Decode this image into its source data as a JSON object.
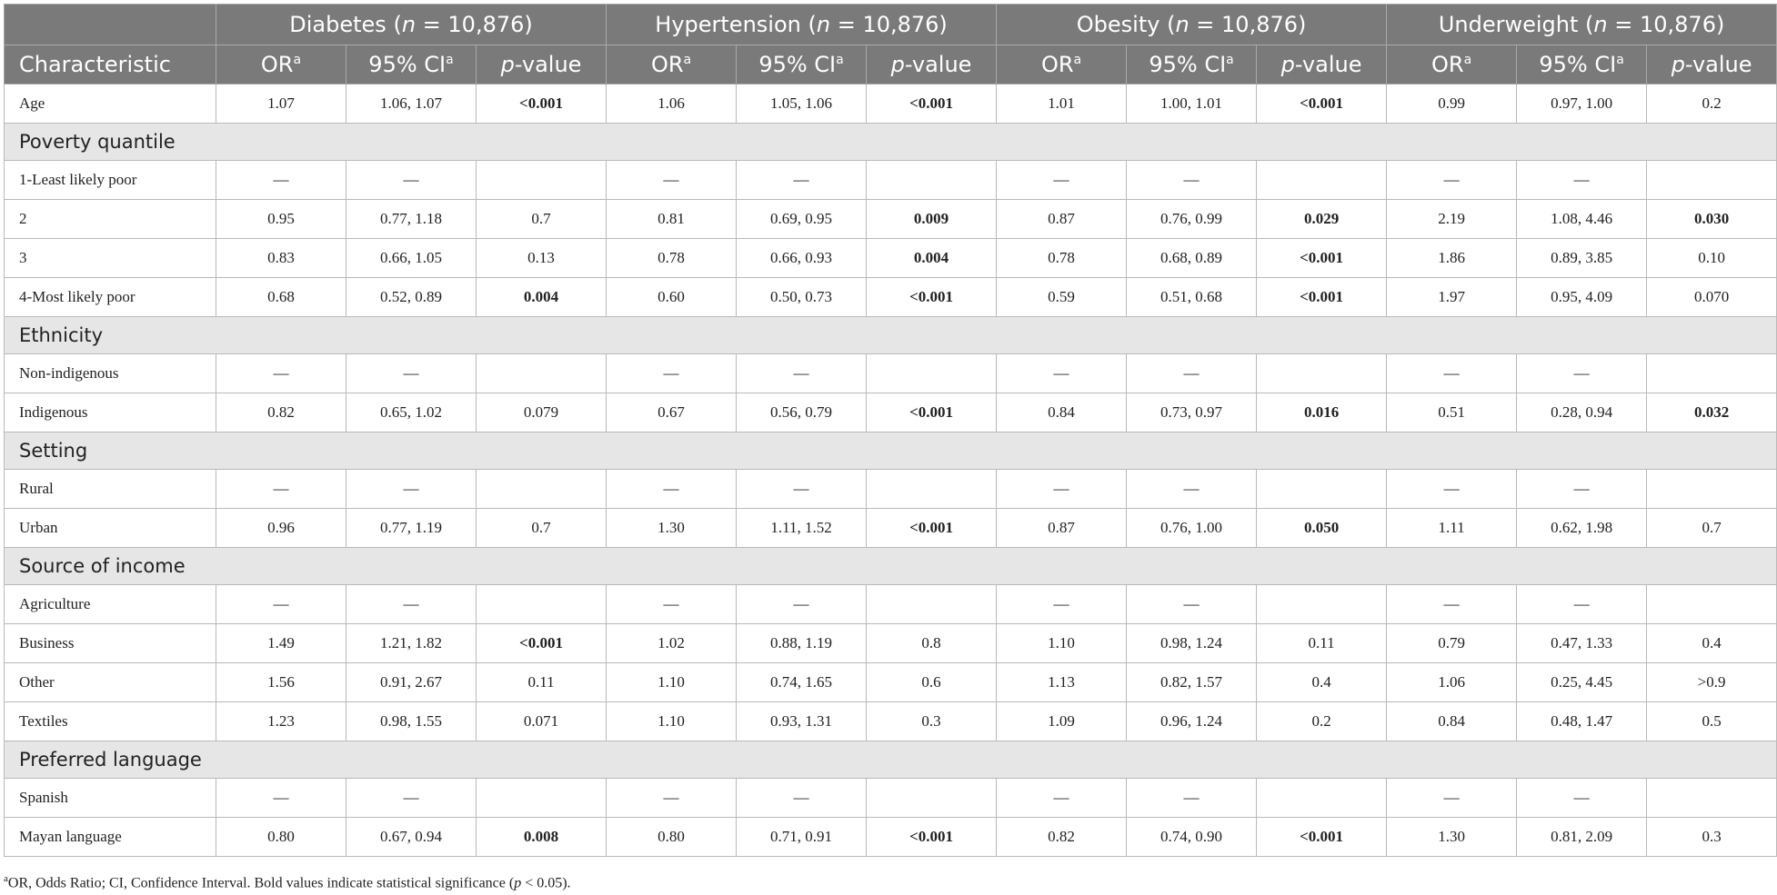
{
  "groups": [
    {
      "name": "Diabetes",
      "n_label": "n",
      "n_value": " = 10,876"
    },
    {
      "name": "Hypertension",
      "n_label": "n",
      "n_value": " = 10,876"
    },
    {
      "name": "Obesity",
      "n_label": "n",
      "n_value": " = 10,876"
    },
    {
      "name": "Underweight",
      "n_label": "n",
      "n_value": " = 10,876"
    }
  ],
  "subheaders": {
    "characteristic": "Characteristic",
    "or": "OR",
    "ci": "95% CI",
    "p_italic": "p",
    "p_rest": "-value",
    "sup": "a"
  },
  "rows": [
    {
      "type": "data",
      "label": "Age",
      "cells": [
        "1.07",
        "1.06, 1.07",
        "<0.001",
        "1.06",
        "1.05, 1.06",
        "<0.001",
        "1.01",
        "1.00, 1.01",
        "<0.001",
        "0.99",
        "0.97, 1.00",
        "0.2"
      ],
      "bold": [
        2,
        5,
        8
      ]
    },
    {
      "type": "section",
      "label": "Poverty quantile"
    },
    {
      "type": "data",
      "label": "1-Least likely poor",
      "cells": [
        "—",
        "—",
        "",
        "—",
        "—",
        "",
        "—",
        "—",
        "",
        "—",
        "—",
        ""
      ],
      "bold": []
    },
    {
      "type": "data",
      "label": "2",
      "cells": [
        "0.95",
        "0.77, 1.18",
        "0.7",
        "0.81",
        "0.69, 0.95",
        "0.009",
        "0.87",
        "0.76, 0.99",
        "0.029",
        "2.19",
        "1.08, 4.46",
        "0.030"
      ],
      "bold": [
        5,
        8,
        11
      ]
    },
    {
      "type": "data",
      "label": "3",
      "cells": [
        "0.83",
        "0.66, 1.05",
        "0.13",
        "0.78",
        "0.66, 0.93",
        "0.004",
        "0.78",
        "0.68, 0.89",
        "<0.001",
        "1.86",
        "0.89, 3.85",
        "0.10"
      ],
      "bold": [
        5,
        8
      ]
    },
    {
      "type": "data",
      "label": "4-Most likely poor",
      "cells": [
        "0.68",
        "0.52, 0.89",
        "0.004",
        "0.60",
        "0.50, 0.73",
        "<0.001",
        "0.59",
        "0.51, 0.68",
        "<0.001",
        "1.97",
        "0.95, 4.09",
        "0.070"
      ],
      "bold": [
        2,
        5,
        8
      ]
    },
    {
      "type": "section",
      "label": "Ethnicity"
    },
    {
      "type": "data",
      "label": "Non-indigenous",
      "cells": [
        "—",
        "—",
        "",
        "—",
        "—",
        "",
        "—",
        "—",
        "",
        "—",
        "—",
        ""
      ],
      "bold": []
    },
    {
      "type": "data",
      "label": "Indigenous",
      "cells": [
        "0.82",
        "0.65, 1.02",
        "0.079",
        "0.67",
        "0.56, 0.79",
        "<0.001",
        "0.84",
        "0.73, 0.97",
        "0.016",
        "0.51",
        "0.28, 0.94",
        "0.032"
      ],
      "bold": [
        5,
        8,
        11
      ]
    },
    {
      "type": "section",
      "label": "Setting"
    },
    {
      "type": "data",
      "label": "Rural",
      "cells": [
        "—",
        "—",
        "",
        "—",
        "—",
        "",
        "—",
        "—",
        "",
        "—",
        "—",
        ""
      ],
      "bold": []
    },
    {
      "type": "data",
      "label": "Urban",
      "cells": [
        "0.96",
        "0.77, 1.19",
        "0.7",
        "1.30",
        "1.11, 1.52",
        "<0.001",
        "0.87",
        "0.76, 1.00",
        "0.050",
        "1.11",
        "0.62, 1.98",
        "0.7"
      ],
      "bold": [
        5,
        8
      ]
    },
    {
      "type": "section",
      "label": "Source of income"
    },
    {
      "type": "data",
      "label": "Agriculture",
      "cells": [
        "—",
        "—",
        "",
        "—",
        "—",
        "",
        "—",
        "—",
        "",
        "—",
        "—",
        ""
      ],
      "bold": []
    },
    {
      "type": "data",
      "label": "Business",
      "cells": [
        "1.49",
        "1.21, 1.82",
        "<0.001",
        "1.02",
        "0.88, 1.19",
        "0.8",
        "1.10",
        "0.98, 1.24",
        "0.11",
        "0.79",
        "0.47, 1.33",
        "0.4"
      ],
      "bold": [
        2
      ]
    },
    {
      "type": "data",
      "label": "Other",
      "cells": [
        "1.56",
        "0.91, 2.67",
        "0.11",
        "1.10",
        "0.74, 1.65",
        "0.6",
        "1.13",
        "0.82, 1.57",
        "0.4",
        "1.06",
        "0.25, 4.45",
        ">0.9"
      ],
      "bold": []
    },
    {
      "type": "data",
      "label": "Textiles",
      "cells": [
        "1.23",
        "0.98, 1.55",
        "0.071",
        "1.10",
        "0.93, 1.31",
        "0.3",
        "1.09",
        "0.96, 1.24",
        "0.2",
        "0.84",
        "0.48, 1.47",
        "0.5"
      ],
      "bold": []
    },
    {
      "type": "section",
      "label": "Preferred language"
    },
    {
      "type": "data",
      "label": "Spanish",
      "cells": [
        "—",
        "—",
        "",
        "—",
        "—",
        "",
        "—",
        "—",
        "",
        "—",
        "—",
        ""
      ],
      "bold": []
    },
    {
      "type": "data",
      "label": "Mayan language",
      "cells": [
        "0.80",
        "0.67, 0.94",
        "0.008",
        "0.80",
        "0.71, 0.91",
        "<0.001",
        "0.82",
        "0.74, 0.90",
        "<0.001",
        "1.30",
        "0.81, 2.09",
        "0.3"
      ],
      "bold": [
        2,
        5,
        8
      ]
    }
  ],
  "footnote": {
    "sup": "a",
    "text_1": "OR, Odds Ratio; CI, Confidence Interval. Bold values indicate statistical significance (",
    "p_italic": "p",
    "text_2": " < 0.05)."
  }
}
